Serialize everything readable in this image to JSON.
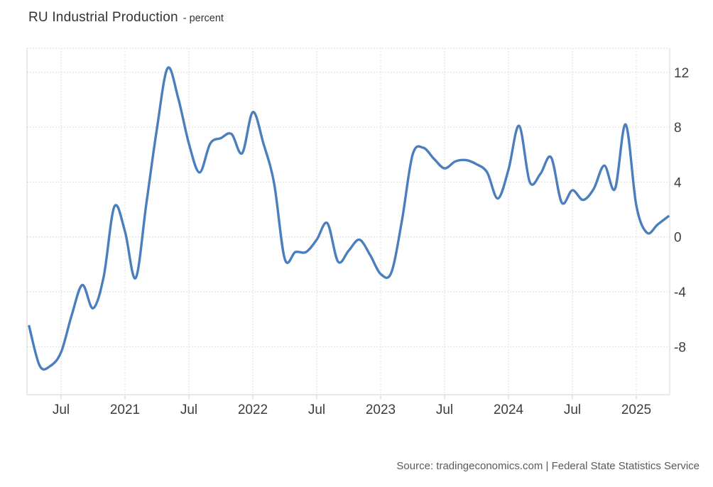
{
  "header": {
    "title": "RU Industrial Production",
    "subtitle": "- percent"
  },
  "footer": {
    "source": "Source: tradingeconomics.com | Federal State Statistics Service"
  },
  "colors": {
    "line": "#4a7ebc",
    "grid": "#dedede",
    "axis": "#d4d4d4",
    "tick": "#cccccc",
    "title_text": "#333333",
    "tick_text": "#3d3d3d",
    "source_text": "#595959",
    "background": "#ffffff"
  },
  "chart_data": {
    "type": "line",
    "title": "RU Industrial Production",
    "ylabel": "percent",
    "frequency": "monthly",
    "grid": true,
    "legend": false,
    "line_color": "#4a7ebc",
    "x": [
      "2020-04",
      "2020-05",
      "2020-06",
      "2020-07",
      "2020-08",
      "2020-09",
      "2020-10",
      "2020-11",
      "2020-12",
      "2021-01",
      "2021-02",
      "2021-03",
      "2021-04",
      "2021-05",
      "2021-06",
      "2021-07",
      "2021-08",
      "2021-09",
      "2021-10",
      "2021-11",
      "2021-12",
      "2022-01",
      "2022-02",
      "2022-03",
      "2022-04",
      "2022-05",
      "2022-06",
      "2022-07",
      "2022-08",
      "2022-09",
      "2022-10",
      "2022-11",
      "2022-12",
      "2023-01",
      "2023-02",
      "2023-03",
      "2023-04",
      "2023-05",
      "2023-06",
      "2023-07",
      "2023-08",
      "2023-09",
      "2023-10",
      "2023-11",
      "2023-12",
      "2024-01",
      "2024-02",
      "2024-03",
      "2024-04",
      "2024-05",
      "2024-06",
      "2024-07",
      "2024-08",
      "2024-09",
      "2024-10",
      "2024-11",
      "2024-12",
      "2025-01",
      "2025-02",
      "2025-03",
      "2025-04"
    ],
    "values": [
      -6.5,
      -9.4,
      -9.4,
      -8.4,
      -5.7,
      -3.5,
      -5.2,
      -2.9,
      2.2,
      0.4,
      -3.0,
      2.4,
      7.9,
      12.3,
      10.1,
      6.8,
      4.7,
      6.8,
      7.2,
      7.5,
      6.1,
      9.1,
      6.8,
      3.9,
      -1.6,
      -1.1,
      -1.1,
      -0.2,
      1.0,
      -1.8,
      -1.0,
      -0.2,
      -1.3,
      -2.7,
      -2.6,
      1.2,
      6.0,
      6.5,
      5.7,
      5.0,
      5.5,
      5.6,
      5.3,
      4.7,
      2.8,
      4.9,
      8.1,
      4.0,
      4.6,
      5.8,
      2.5,
      3.4,
      2.7,
      3.5,
      5.2,
      3.5,
      8.2,
      2.3,
      0.3,
      0.9,
      1.5
    ],
    "x_tick_labels": [
      {
        "index": 3,
        "label": "Jul"
      },
      {
        "index": 9,
        "label": "2021"
      },
      {
        "index": 15,
        "label": "Jul"
      },
      {
        "index": 21,
        "label": "2022"
      },
      {
        "index": 27,
        "label": "Jul"
      },
      {
        "index": 33,
        "label": "2023"
      },
      {
        "index": 39,
        "label": "Jul"
      },
      {
        "index": 45,
        "label": "2024"
      },
      {
        "index": 51,
        "label": "Jul"
      },
      {
        "index": 57,
        "label": "2025"
      }
    ],
    "y_ticks": [
      12,
      8,
      4,
      0,
      -4,
      -8
    ],
    "ylim": [
      -11.5,
      13.75
    ]
  }
}
